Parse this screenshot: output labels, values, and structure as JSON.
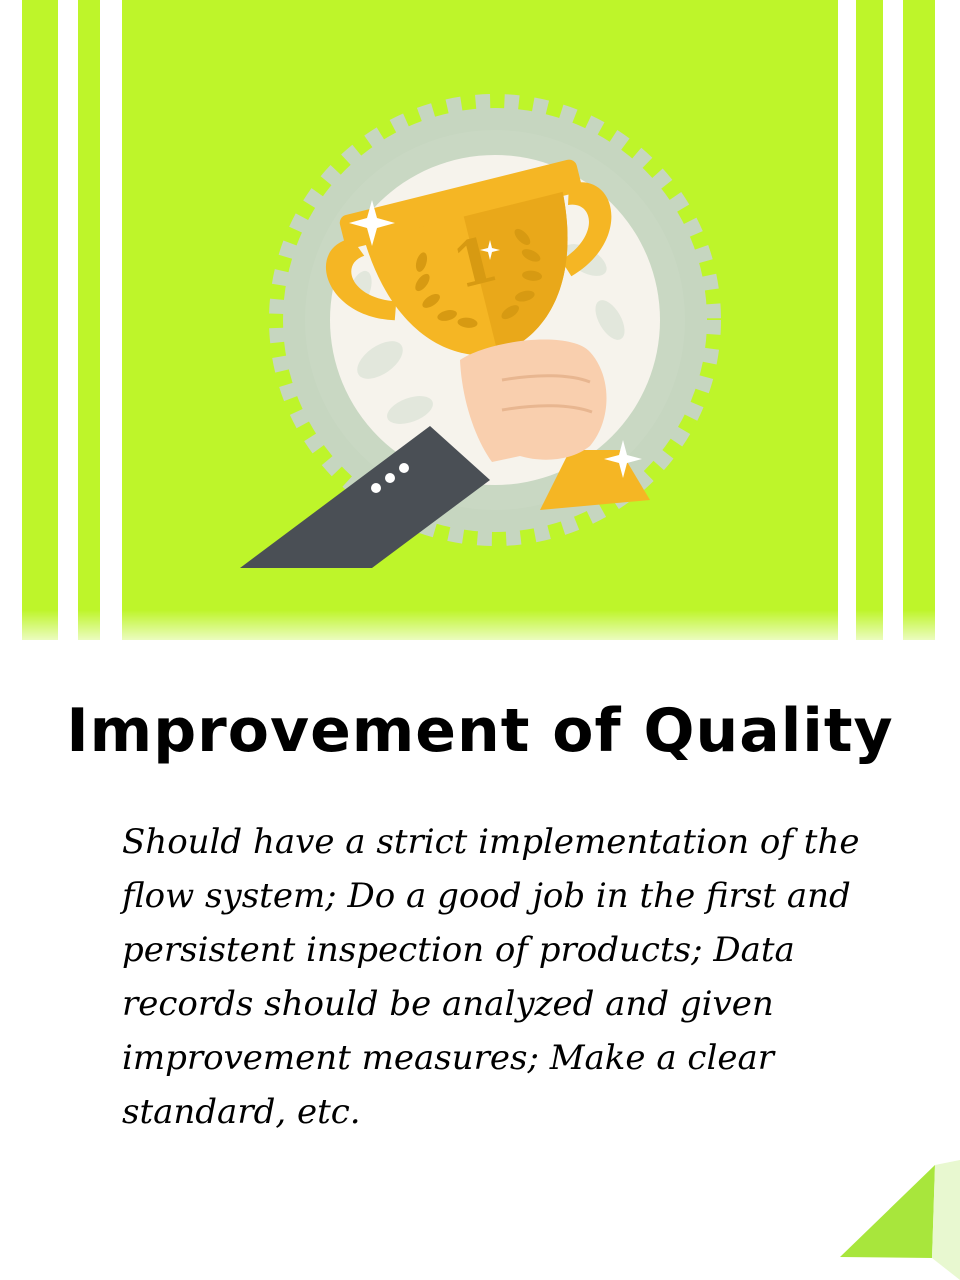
{
  "card": {
    "title": "Improvement of Quality",
    "body": "Should have a strict implementation of the flow system; Do a good job in the first and persistent inspection of products; Data records should be analyzed and given improvement measures; Make a clear standard, etc."
  },
  "illustration": {
    "icons": [
      "trophy-icon",
      "hand-holding-trophy",
      "badge-seal",
      "sparkle-icon",
      "laurel-wreath-icon"
    ],
    "trophy_number": "1"
  },
  "colors": {
    "lime_background": "#bef52a",
    "stripe_white": "#ffffff",
    "trophy_gold": "#f5b624",
    "trophy_shadow": "#d79a12",
    "seal_outer": "#c6d6c0",
    "seal_inner": "#f6f3ec",
    "sleeve_gray": "#4a4f55",
    "skin": "#f9cfae",
    "text": "#000000",
    "corner_fold": "#a8e63c"
  }
}
